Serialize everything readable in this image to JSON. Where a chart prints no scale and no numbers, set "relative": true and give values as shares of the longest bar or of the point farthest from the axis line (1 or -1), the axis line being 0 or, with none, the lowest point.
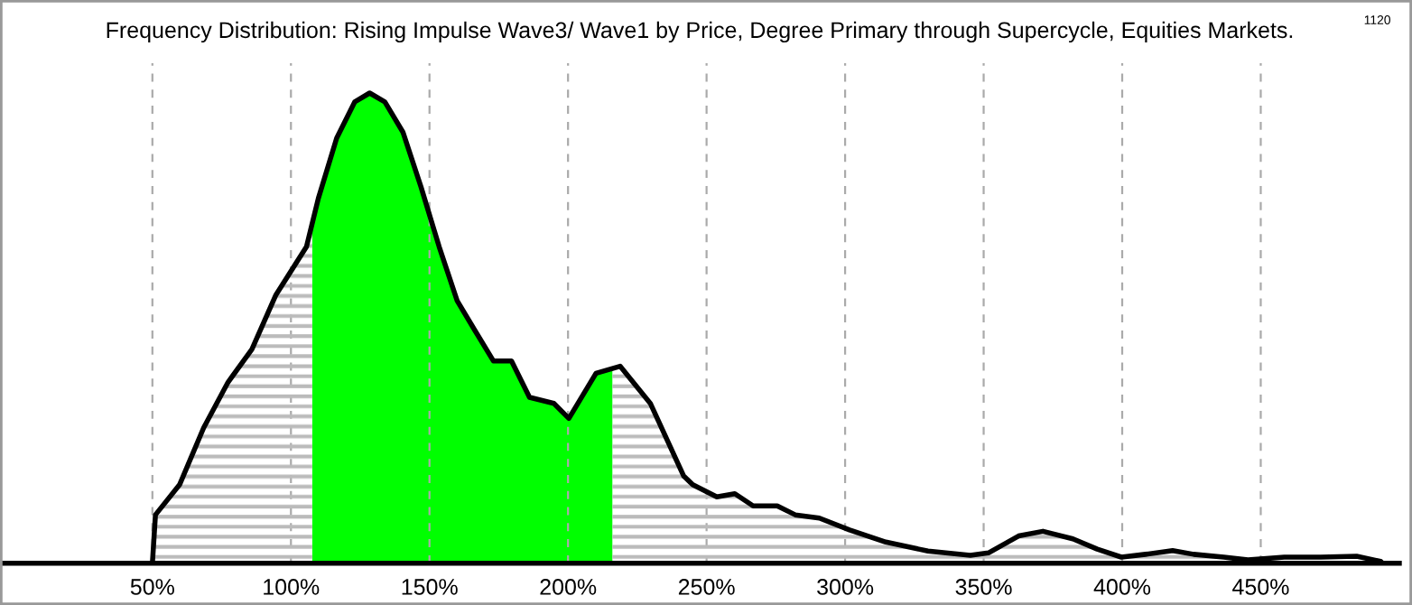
{
  "chart_data": {
    "type": "area",
    "title": "Frequency Distribution: Rising Impulse Wave3/ Wave1 by Price, Degree Primary through Supercycle, Equities Markets.",
    "annotations": [
      "1120"
    ],
    "relative": true,
    "x": [
      50,
      51.1,
      59.8,
      68.5,
      77.3,
      85.9,
      94.6,
      105.6,
      109.9,
      116.5,
      123,
      128.4,
      133.9,
      140.4,
      146.9,
      153.5,
      160,
      166.5,
      173.1,
      179.6,
      186.1,
      194.9,
      200.3,
      210.1,
      218.8,
      229.7,
      241.7,
      245,
      253.7,
      260.2,
      266.8,
      275.5,
      282,
      290.7,
      301.6,
      314.7,
      329.9,
      345.2,
      351.7,
      362.6,
      371.4,
      382.2,
      391,
      399.7,
      408.4,
      418.2,
      425.8,
      436.7,
      445.4,
      458.5,
      471.6,
      484.6,
      493.3,
      494
    ],
    "series": [
      {
        "color": "#000000",
        "values": [
          0,
          0.103,
          0.167,
          0.288,
          0.385,
          0.455,
          0.571,
          0.673,
          0.776,
          0.904,
          0.981,
          1.0,
          0.981,
          0.917,
          0.801,
          0.673,
          0.558,
          0.494,
          0.43,
          0.43,
          0.353,
          0.34,
          0.308,
          0.404,
          0.419,
          0.34,
          0.186,
          0.167,
          0.141,
          0.148,
          0.122,
          0.122,
          0.103,
          0.096,
          0.071,
          0.045,
          0.026,
          0.017,
          0.022,
          0.058,
          0.068,
          0.052,
          0.03,
          0.013,
          0.019,
          0.027,
          0.019,
          0.013,
          0.007,
          0.013,
          0.013,
          0.015,
          0.004,
          0
        ]
      }
    ],
    "bands": [
      {
        "axis": "x",
        "from": 107.7,
        "to": 216,
        "color": "#00ff00"
      }
    ],
    "xlim": [
      -5,
      500
    ],
    "xticks": [
      {
        "value": 50,
        "label": "50%"
      },
      {
        "value": 100,
        "label": "100%"
      },
      {
        "value": 150,
        "label": "150%"
      },
      {
        "value": 200,
        "label": "200%"
      },
      {
        "value": 250,
        "label": "250%"
      },
      {
        "value": 300,
        "label": "300%"
      },
      {
        "value": 350,
        "label": "350%"
      },
      {
        "value": 400,
        "label": "400%"
      },
      {
        "value": 450,
        "label": "450%"
      }
    ],
    "grid": "x"
  }
}
